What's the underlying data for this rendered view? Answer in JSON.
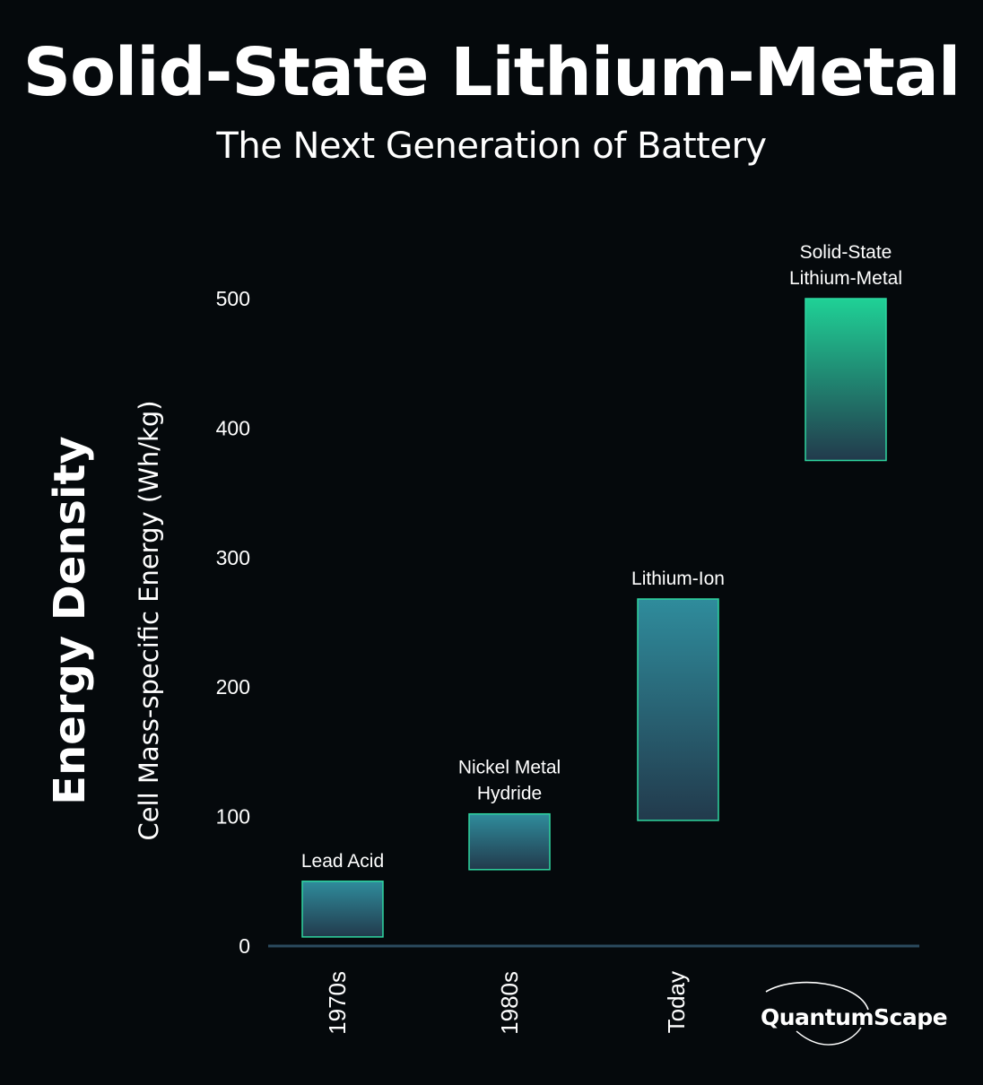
{
  "header": {
    "title": "Solid-State Lithium-Metal",
    "subtitle": "The Next Generation of Battery"
  },
  "axis": {
    "ylabel_main": "Energy Density",
    "ylabel_sub": "Cell Mass-specific Energy (Wh/kg)"
  },
  "logo": {
    "text": "QuantumScape"
  },
  "colors": {
    "background": "#05090c",
    "bar_top_teal": "#2f8c9c",
    "bar_bottom": "#223a4c",
    "bar_top_green": "#1fd196",
    "bar_border": "#2fd6a0",
    "baseline": "#2b4a5e"
  },
  "chart_data": {
    "type": "bar",
    "subtype": "floating-range",
    "categories": [
      "1970s",
      "1980s",
      "Today",
      ""
    ],
    "yticks": [
      0,
      100,
      200,
      300,
      400,
      500
    ],
    "ylim": [
      0,
      500
    ],
    "series": [
      {
        "label": "Lead Acid",
        "label_lines": [
          "Lead Acid"
        ],
        "category": "1970s",
        "low": 7,
        "high": 50
      },
      {
        "label": "Nickel Metal Hydride",
        "label_lines": [
          "Nickel Metal",
          "Hydride"
        ],
        "category": "1980s",
        "low": 59,
        "high": 102
      },
      {
        "label": "Lithium-Ion",
        "label_lines": [
          "Lithium-Ion"
        ],
        "category": "Today",
        "low": 97,
        "high": 268
      },
      {
        "label": "Solid-State Lithium-Metal",
        "label_lines": [
          "Solid-State",
          "Lithium-Metal"
        ],
        "category": "",
        "low": 375,
        "high": 500
      }
    ]
  }
}
